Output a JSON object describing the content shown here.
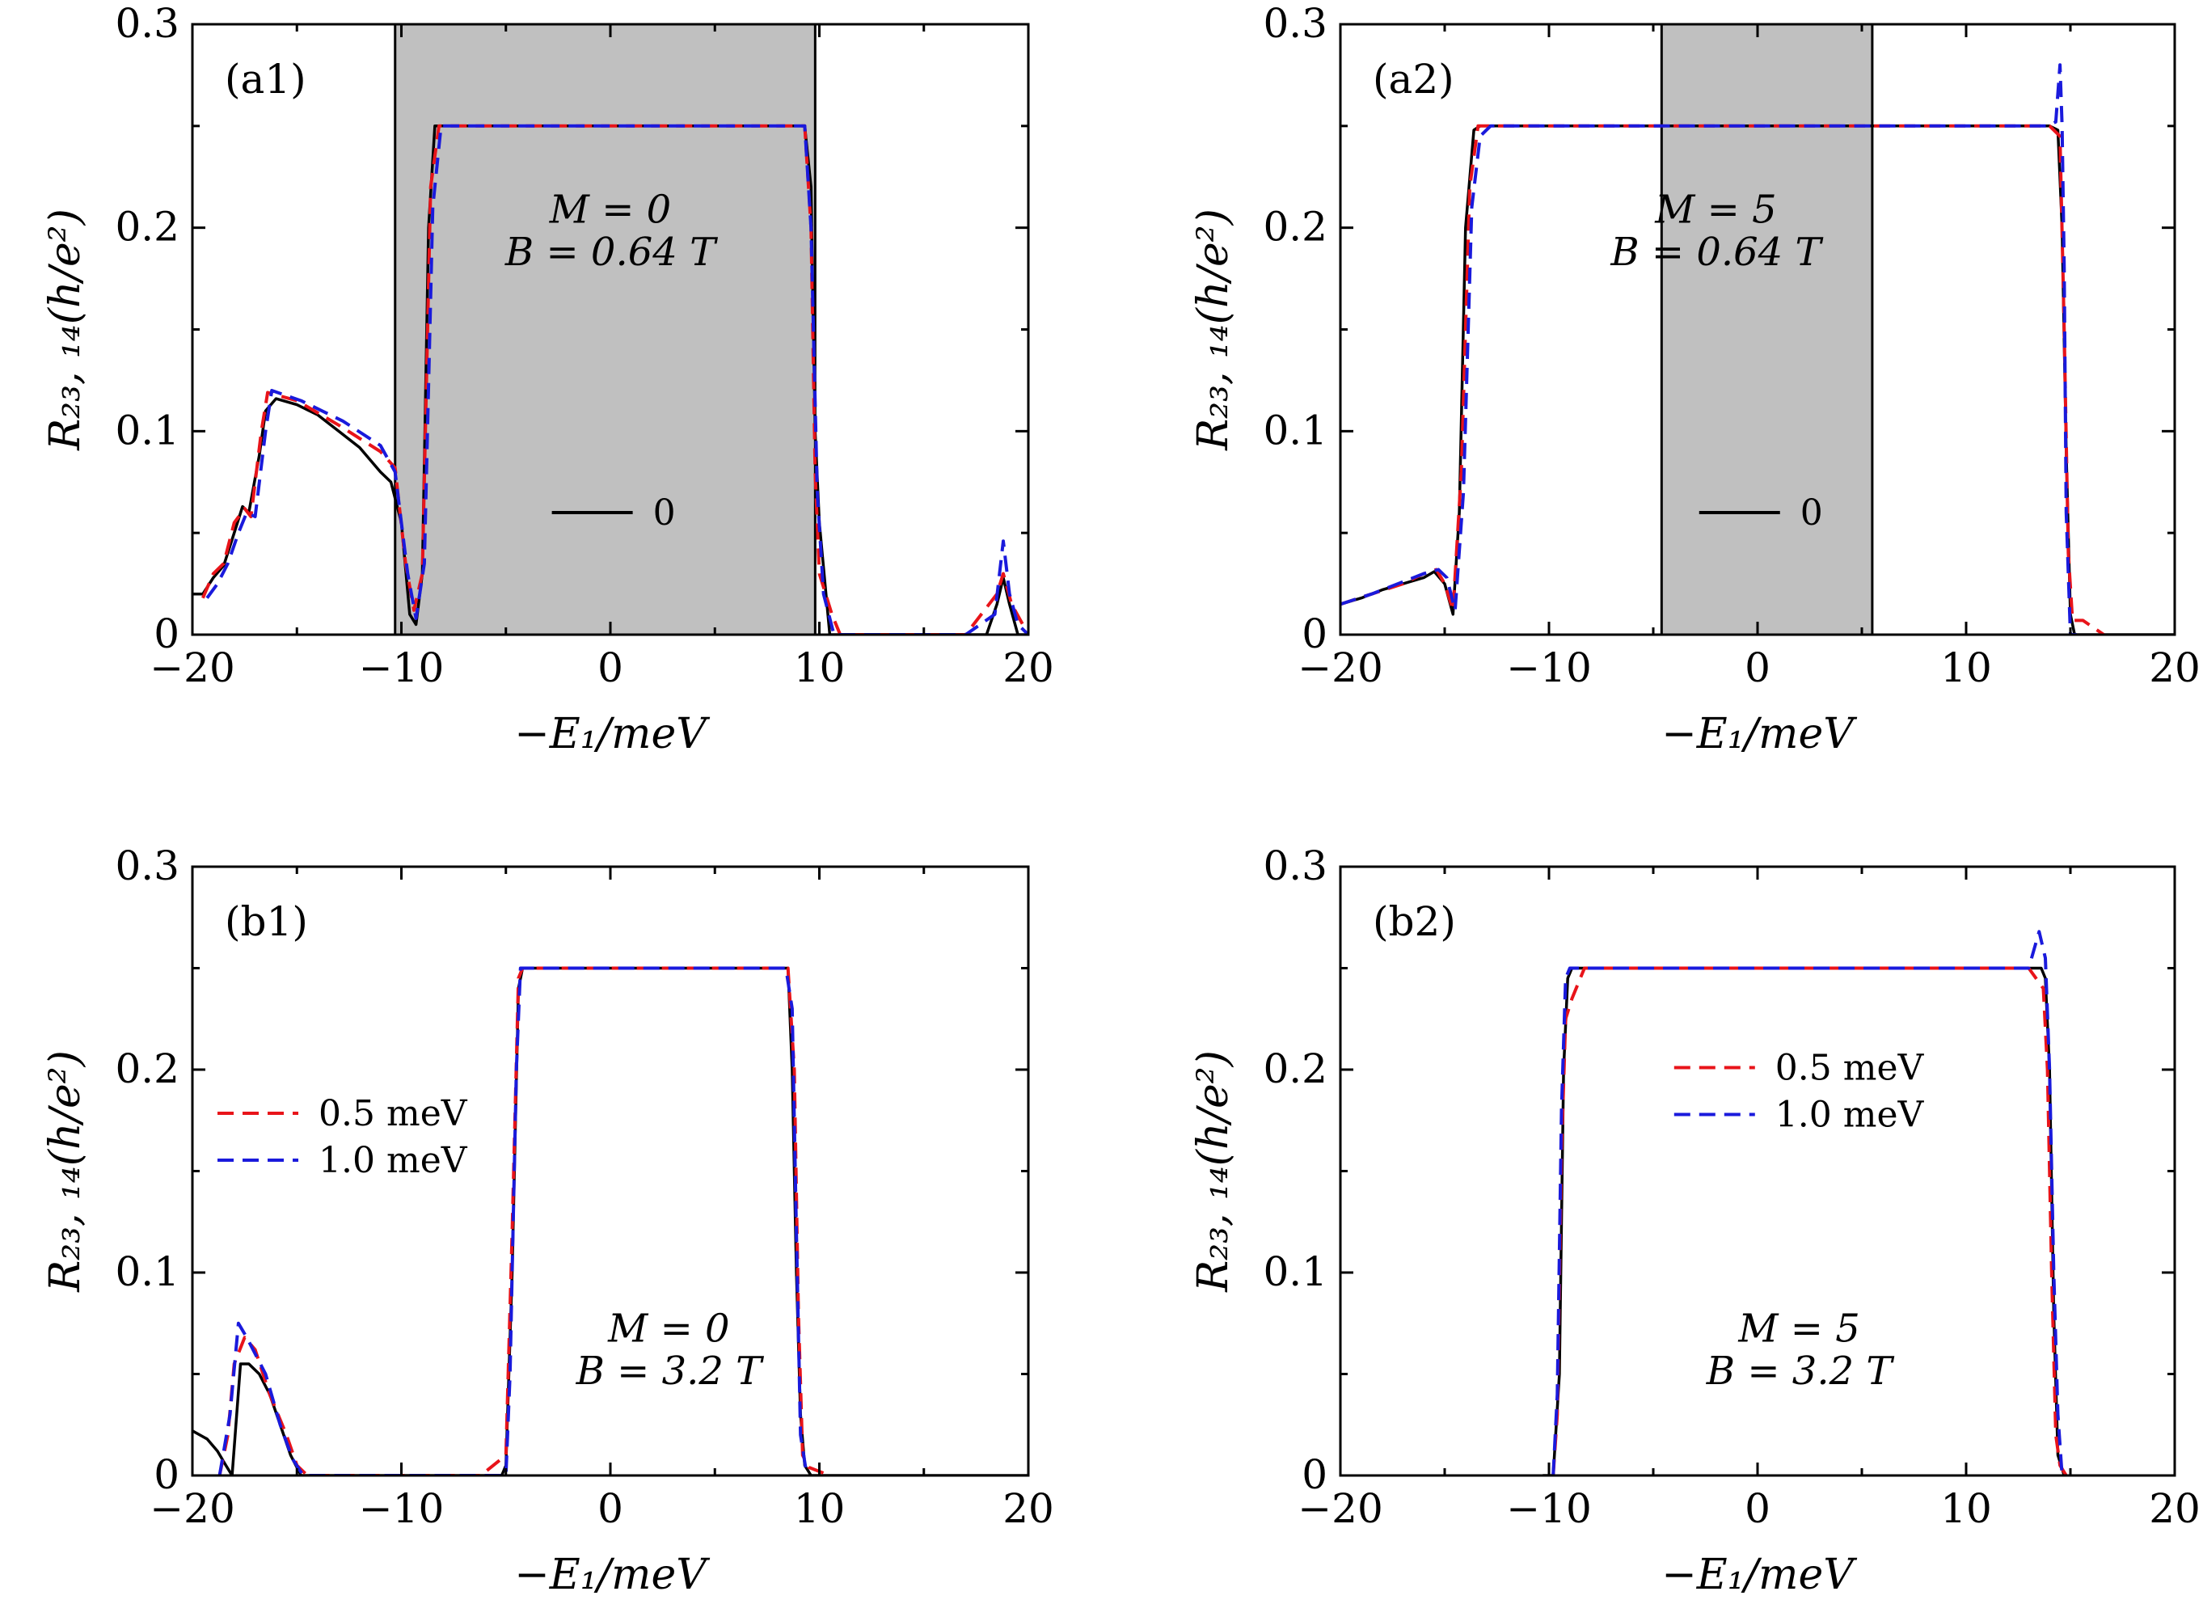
{
  "chart_data": [
    {
      "id": "a1",
      "type": "line",
      "panel_label": "(a1)",
      "xlabel": "−E₁/meV",
      "ylabel": "R₂₃, ₁₄(h/e²)",
      "xlim": [
        -20,
        20
      ],
      "ylim": [
        0,
        0.3
      ],
      "xticks": [
        -20,
        -10,
        0,
        10,
        20
      ],
      "xtick_labels": [
        "−20",
        "−10",
        "0",
        "10",
        "20"
      ],
      "yticks": [
        0,
        0.1,
        0.2,
        0.3
      ],
      "ytick_labels": [
        "0",
        "0.1",
        "0.2",
        "0.3"
      ],
      "shaded_region": [
        -10.3,
        9.8
      ],
      "annotation": [
        "M = 0",
        "B = 0.64 T"
      ],
      "legend_position": "lower-center",
      "legend": [
        {
          "name": "0",
          "color": "#000000",
          "dashed": false
        }
      ],
      "series": [
        {
          "name": "0",
          "color": "#000000",
          "dashed": false,
          "x": [
            -20,
            -19.5,
            -19,
            -18.5,
            -18,
            -17.6,
            -17.3,
            -16.8,
            -16.5,
            -16,
            -15,
            -14,
            -13,
            -12,
            -11,
            -10.5,
            -10,
            -9.6,
            -9.3,
            -9.0,
            -8.7,
            -8.4,
            -8,
            -6,
            -4,
            -2,
            0,
            2,
            4,
            6,
            8,
            9.3,
            9.6,
            9.8,
            10.0,
            10.5,
            17,
            18,
            18.5,
            18.8,
            19.1,
            19.5,
            20
          ],
          "y": [
            0.02,
            0.02,
            0.028,
            0.034,
            0.05,
            0.063,
            0.06,
            0.088,
            0.11,
            0.116,
            0.113,
            0.108,
            0.1,
            0.092,
            0.08,
            0.075,
            0.055,
            0.01,
            0.005,
            0.03,
            0.2,
            0.25,
            0.25,
            0.25,
            0.25,
            0.25,
            0.25,
            0.25,
            0.25,
            0.25,
            0.25,
            0.25,
            0.22,
            0.1,
            0.055,
            0.0,
            0.0,
            0.0,
            0.015,
            0.028,
            0.015,
            0.0,
            0.0
          ]
        },
        {
          "name": "0.5 meV",
          "color": "#e8141a",
          "dashed": true,
          "x": [
            -19.5,
            -19,
            -18.5,
            -18,
            -17.5,
            -17.2,
            -16.7,
            -16.4,
            -15,
            -13,
            -11,
            -10.3,
            -9.8,
            -9.4,
            -9.0,
            -8.6,
            -8.2,
            -8,
            0,
            9.3,
            9.6,
            9.8,
            10.0,
            10.6,
            11,
            17,
            18.5,
            18.8,
            19.2,
            20
          ],
          "y": [
            0.018,
            0.03,
            0.035,
            0.055,
            0.062,
            0.058,
            0.1,
            0.119,
            0.115,
            0.103,
            0.09,
            0.082,
            0.035,
            0.012,
            0.03,
            0.22,
            0.25,
            0.25,
            0.25,
            0.25,
            0.2,
            0.08,
            0.03,
            0.01,
            0.0,
            0.0,
            0.02,
            0.03,
            0.015,
            0.0
          ]
        },
        {
          "name": "1.0 meV",
          "color": "#1a1adc",
          "dashed": true,
          "x": [
            -19.3,
            -18.8,
            -18.3,
            -17.8,
            -17.4,
            -17.0,
            -16.5,
            -16.2,
            -14.8,
            -12.8,
            -11,
            -10.3,
            -9.7,
            -9.3,
            -8.9,
            -8.5,
            -8.1,
            -8,
            0,
            9.3,
            9.6,
            9.9,
            10.2,
            10.7,
            17,
            18.4,
            18.8,
            19.1,
            19.5,
            20
          ],
          "y": [
            0.018,
            0.025,
            0.035,
            0.05,
            0.06,
            0.058,
            0.1,
            0.12,
            0.115,
            0.105,
            0.093,
            0.08,
            0.03,
            0.008,
            0.035,
            0.21,
            0.25,
            0.25,
            0.25,
            0.25,
            0.2,
            0.07,
            0.02,
            0.0,
            0.0,
            0.01,
            0.046,
            0.02,
            0.005,
            0.0
          ]
        }
      ]
    },
    {
      "id": "a2",
      "type": "line",
      "panel_label": "(a2)",
      "xlabel": "−E₁/meV",
      "ylabel": "R₂₃, ₁₄(h/e²)",
      "xlim": [
        -20,
        20
      ],
      "ylim": [
        0,
        0.3
      ],
      "xticks": [
        -20,
        -10,
        0,
        10,
        20
      ],
      "xtick_labels": [
        "−20",
        "−10",
        "0",
        "10",
        "20"
      ],
      "yticks": [
        0,
        0.1,
        0.2,
        0.3
      ],
      "ytick_labels": [
        "0",
        "0.1",
        "0.2",
        "0.3"
      ],
      "shaded_region": [
        -4.6,
        5.5
      ],
      "annotation": [
        "M = 5",
        "B = 0.64 T"
      ],
      "legend_position": "lower-center",
      "legend": [
        {
          "name": "0",
          "color": "#000000",
          "dashed": false
        }
      ],
      "series": [
        {
          "name": "0",
          "color": "#000000",
          "dashed": false,
          "x": [
            -20,
            -19,
            -18,
            -17,
            -16,
            -15.5,
            -15,
            -14.6,
            -14.3,
            -14.0,
            -13.6,
            -13.3,
            -13,
            0,
            14,
            14.4,
            14.6,
            14.8,
            15.0,
            15.2,
            20
          ],
          "y": [
            0.015,
            0.018,
            0.022,
            0.025,
            0.028,
            0.031,
            0.025,
            0.01,
            0.06,
            0.2,
            0.248,
            0.25,
            0.25,
            0.25,
            0.25,
            0.248,
            0.2,
            0.09,
            0.01,
            0.0,
            0.0
          ]
        },
        {
          "name": "0.5 meV",
          "color": "#e8141a",
          "dashed": true,
          "x": [
            -20,
            -18.5,
            -17,
            -16,
            -15.4,
            -15,
            -14.6,
            -14.2,
            -13.8,
            -13.4,
            -13,
            0,
            14,
            14.5,
            14.7,
            14.9,
            15.1,
            15.6,
            16.6
          ],
          "y": [
            0.015,
            0.02,
            0.025,
            0.03,
            0.032,
            0.025,
            0.012,
            0.08,
            0.22,
            0.25,
            0.25,
            0.25,
            0.25,
            0.245,
            0.15,
            0.04,
            0.007,
            0.007,
            0.0
          ]
        },
        {
          "name": "1.0 meV",
          "color": "#1a1adc",
          "dashed": true,
          "x": [
            -20,
            -18.5,
            -17,
            -16,
            -15.3,
            -14.9,
            -14.5,
            -14.1,
            -13.7,
            -13.3,
            -12.8,
            0,
            13.9,
            14.3,
            14.5,
            14.6,
            14.7,
            14.8,
            15.0,
            15.3
          ],
          "y": [
            0.015,
            0.02,
            0.026,
            0.03,
            0.032,
            0.028,
            0.012,
            0.07,
            0.21,
            0.245,
            0.25,
            0.25,
            0.25,
            0.252,
            0.28,
            0.25,
            0.18,
            0.06,
            0.0,
            0.0
          ]
        }
      ]
    },
    {
      "id": "b1",
      "type": "line",
      "panel_label": "(b1)",
      "xlabel": "−E₁/meV",
      "ylabel": "R₂₃, ₁₄(h/e²)",
      "xlim": [
        -20,
        20
      ],
      "ylim": [
        0,
        0.3
      ],
      "xticks": [
        -20,
        -10,
        0,
        10,
        20
      ],
      "xtick_labels": [
        "−20",
        "−10",
        "0",
        "10",
        "20"
      ],
      "yticks": [
        0,
        0.1,
        0.2,
        0.3
      ],
      "ytick_labels": [
        "0",
        "0.1",
        "0.2",
        "0.3"
      ],
      "shaded_region": null,
      "annotation": [
        "M = 0",
        "B = 3.2 T"
      ],
      "legend_position": "center-left",
      "legend": [
        {
          "name": "0.5 meV",
          "color": "#e8141a",
          "dashed": true
        },
        {
          "name": "1.0 meV",
          "color": "#1a1adc",
          "dashed": true
        }
      ],
      "series": [
        {
          "name": "0",
          "color": "#000000",
          "dashed": false,
          "x": [
            -20,
            -19.3,
            -18.8,
            -18.4,
            -18.1,
            -17.7,
            -17.3,
            -16.8,
            -16.3,
            -15.8,
            -15.3,
            -14.8,
            -14.5,
            -5.2,
            -5.0,
            -4.7,
            -4.4,
            -4.2,
            -4,
            0,
            8.5,
            8.7,
            8.9,
            9.1,
            9.3,
            9.6,
            10,
            20
          ],
          "y": [
            0.022,
            0.018,
            0.012,
            0.005,
            0.0,
            0.055,
            0.055,
            0.05,
            0.04,
            0.025,
            0.01,
            0.0,
            0.0,
            0.0,
            0.005,
            0.1,
            0.24,
            0.25,
            0.25,
            0.25,
            0.25,
            0.2,
            0.1,
            0.03,
            0.005,
            0.0,
            0.0,
            0.0
          ]
        },
        {
          "name": "0.5 meV",
          "color": "#e8141a",
          "dashed": true,
          "x": [
            -18.7,
            -18.3,
            -18.0,
            -17.5,
            -17.0,
            -16.3,
            -15.5,
            -15,
            -14.5,
            -6.2,
            -5.0,
            -4.7,
            -4.4,
            -4.2,
            -4,
            0,
            8.5,
            8.8,
            9.0,
            9.2,
            9.5,
            10.5
          ],
          "y": [
            0.0,
            0.02,
            0.055,
            0.068,
            0.062,
            0.04,
            0.02,
            0.005,
            0.0,
            0.0,
            0.01,
            0.12,
            0.245,
            0.25,
            0.25,
            0.25,
            0.25,
            0.2,
            0.08,
            0.01,
            0.004,
            0.0
          ]
        },
        {
          "name": "1.0 meV",
          "color": "#1a1adc",
          "dashed": true,
          "x": [
            -18.7,
            -18.2,
            -17.8,
            -17.4,
            -17.0,
            -16.5,
            -15.8,
            -15.2,
            -14.7,
            -5.0,
            -4.8,
            -4.5,
            -4.3,
            -4.1,
            0,
            8.4,
            8.7,
            8.9,
            9.1,
            9.4
          ],
          "y": [
            0.0,
            0.03,
            0.075,
            0.068,
            0.06,
            0.05,
            0.025,
            0.008,
            0.0,
            0.0,
            0.05,
            0.2,
            0.25,
            0.25,
            0.25,
            0.25,
            0.23,
            0.12,
            0.02,
            0.0
          ]
        }
      ]
    },
    {
      "id": "b2",
      "type": "line",
      "panel_label": "(b2)",
      "xlabel": "−E₁/meV",
      "ylabel": "R₂₃, ₁₄(h/e²)",
      "xlim": [
        -20,
        20
      ],
      "ylim": [
        0,
        0.3
      ],
      "xticks": [
        -20,
        -10,
        0,
        10,
        20
      ],
      "xtick_labels": [
        "−20",
        "−10",
        "0",
        "10",
        "20"
      ],
      "yticks": [
        0,
        0.1,
        0.2,
        0.3
      ],
      "ytick_labels": [
        "0",
        "0.1",
        "0.2",
        "0.3"
      ],
      "shaded_region": null,
      "annotation": [
        "M = 5",
        "B = 3.2 T"
      ],
      "legend_position": "upper-center",
      "legend": [
        {
          "name": "0.5 meV",
          "color": "#e8141a",
          "dashed": true
        },
        {
          "name": "1.0 meV",
          "color": "#1a1adc",
          "dashed": true
        }
      ],
      "series": [
        {
          "name": "0",
          "color": "#000000",
          "dashed": false,
          "x": [
            -10.3,
            -9.8,
            -9.5,
            -9.3,
            -9.1,
            -8.9,
            0,
            13.6,
            13.8,
            14.0,
            14.2,
            14.4,
            14.7
          ],
          "y": [
            0.0,
            0.0,
            0.05,
            0.2,
            0.245,
            0.25,
            0.25,
            0.25,
            0.245,
            0.2,
            0.08,
            0.01,
            0.0
          ]
        },
        {
          "name": "0.5 meV",
          "color": "#e8141a",
          "dashed": true,
          "x": [
            -9.8,
            -9.6,
            -9.4,
            -9.2,
            -8.9,
            -8.3,
            0,
            13.0,
            13.7,
            13.9,
            14.1,
            14.3,
            14.5,
            14.8
          ],
          "y": [
            0.0,
            0.03,
            0.16,
            0.225,
            0.235,
            0.25,
            0.25,
            0.25,
            0.24,
            0.2,
            0.1,
            0.02,
            0.005,
            0.0
          ]
        },
        {
          "name": "1.0 meV",
          "color": "#1a1adc",
          "dashed": true,
          "x": [
            -9.8,
            -9.6,
            -9.4,
            -9.2,
            -9.0,
            -8.8,
            0,
            13.0,
            13.5,
            13.8,
            14.0,
            14.2,
            14.4,
            14.6
          ],
          "y": [
            0.0,
            0.04,
            0.18,
            0.245,
            0.25,
            0.25,
            0.25,
            0.25,
            0.268,
            0.255,
            0.2,
            0.1,
            0.03,
            0.0
          ]
        }
      ]
    }
  ]
}
